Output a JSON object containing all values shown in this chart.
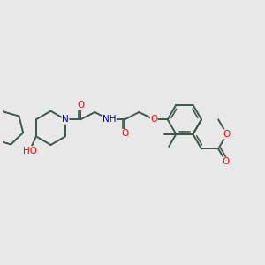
{
  "bg_color": "#e8e8e8",
  "bond_color": "#3a5a4a",
  "atom_colors": {
    "O": "#ff0000",
    "N": "#0000cc",
    "C": "#3a5a4a"
  },
  "bond_width": 1.4,
  "font_size": 7.5
}
